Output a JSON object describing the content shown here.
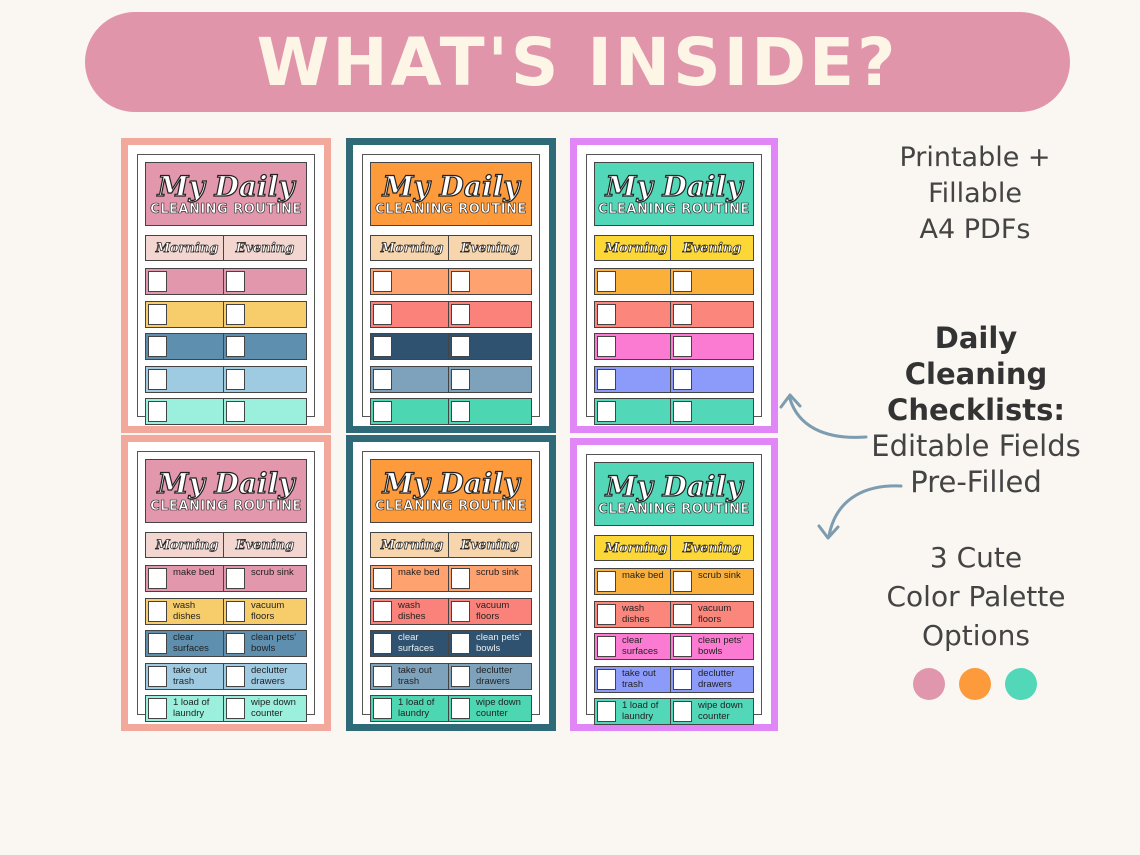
{
  "banner": {
    "title": "WHAT'S INSIDE?"
  },
  "sheet": {
    "title": "My Daily",
    "subtitle": "CLEANING ROUTINE",
    "col_morning": "Morning",
    "col_evening": "Evening"
  },
  "tasks": {
    "morning": [
      "make bed",
      "wash\ndishes",
      "clear\nsurfaces",
      "take out\ntrash",
      "1 load of\nlaundry"
    ],
    "evening": [
      "scrub sink",
      "vacuum\nfloors",
      "clean pets'\nbowls",
      "declutter\ndrawers",
      "wipe down\ncounter"
    ]
  },
  "palettes": [
    {
      "name": "pink",
      "border": "#f2a89a",
      "header": "#e397ad",
      "label": "#f3d6cf",
      "rows": [
        "#e397ad",
        "#f6cd6a",
        "#5f8fae",
        "#9ecbe1",
        "#9af0dc"
      ]
    },
    {
      "name": "orange",
      "border": "#2f6a78",
      "header": "#fc9a3c",
      "label": "#f8d6ad",
      "rows": [
        "#fea26f",
        "#fb827a",
        "#2e526f",
        "#7ea2bb",
        "#4dd6b2"
      ]
    },
    {
      "name": "teal",
      "border": "#e086f6",
      "header": "#52d7b8",
      "label": "#fcd736",
      "rows": [
        "#fbb039",
        "#fb867c",
        "#fc7bd2",
        "#8c9bfa",
        "#52d7b8"
      ]
    }
  ],
  "side": {
    "formats": [
      "Printable +",
      "Fillable",
      "A4 PDFs"
    ],
    "feature_title": [
      "Daily",
      "Cleaning",
      "Checklists:"
    ],
    "feature_items": [
      "Editable Fields",
      "Pre-Filled"
    ],
    "palettes_text": [
      "3 Cute",
      "Color Palette",
      "Options"
    ],
    "palette_dots": [
      "#e097ad",
      "#fc9a3c",
      "#52d7b8"
    ]
  }
}
